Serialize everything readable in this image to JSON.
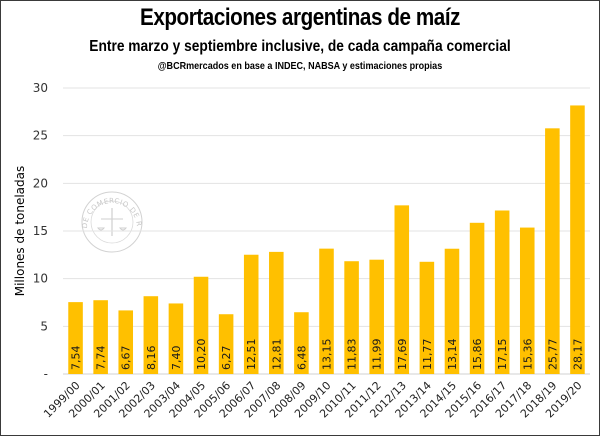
{
  "chart_data": {
    "type": "bar",
    "title": "Exportaciones argentinas de maíz",
    "subtitle": "Entre marzo y septiembre inclusive, de cada campaña comercial",
    "source": "@BCRmercados en base a INDEC, NABSA y estimaciones propias",
    "xlabel": "",
    "ylabel": "Millones de toneladas",
    "ylim": [
      0,
      30
    ],
    "yticks": [
      0,
      5,
      10,
      15,
      20,
      25,
      30
    ],
    "ytick_labels": [
      "-",
      "5",
      "10",
      "15",
      "20",
      "25",
      "30"
    ],
    "grid": true,
    "legend": "none",
    "bar_color": "#FFC000",
    "watermark": "BOLSA DE COMERCIO DE ROSARIO",
    "categories": [
      "1999/00",
      "2000/01",
      "2001/02",
      "2002/03",
      "2003/04",
      "2004/05",
      "2005/06",
      "2006/07",
      "2007/08",
      "2008/09",
      "2009/10",
      "2010/11",
      "2011/12",
      "2012/13",
      "2013/14",
      "2014/15",
      "2015/16",
      "2016/17",
      "2017/18",
      "2018/19",
      "2019/20"
    ],
    "values": [
      7.54,
      7.74,
      6.67,
      8.16,
      7.4,
      10.2,
      6.27,
      12.51,
      12.81,
      6.48,
      13.15,
      11.83,
      11.99,
      17.69,
      11.77,
      13.14,
      15.86,
      17.15,
      15.36,
      25.77,
      28.17
    ],
    "data_labels": [
      "7,54",
      "7,74",
      "6,67",
      "8,16",
      "7,40",
      "10,20",
      "6,27",
      "12,51",
      "12,81",
      "6,48",
      "13,15",
      "11,83",
      "11,99",
      "17,69",
      "11,77",
      "13,14",
      "15,86",
      "17,15",
      "15,36",
      "25,77",
      "28,17"
    ]
  }
}
